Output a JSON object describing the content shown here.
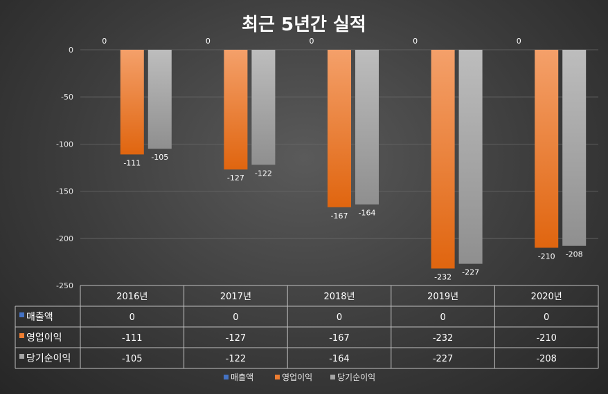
{
  "chart_data": {
    "type": "bar",
    "title": "최근 5년간 실적",
    "categories": [
      "2016년",
      "2017년",
      "2018년",
      "2019년",
      "2020년"
    ],
    "series": [
      {
        "name": "매출액",
        "values": [
          0,
          0,
          0,
          0,
          0
        ],
        "color": "#4472c4"
      },
      {
        "name": "영업이익",
        "values": [
          -111,
          -127,
          -167,
          -232,
          -210
        ],
        "color": "#ed7d31"
      },
      {
        "name": "당기순이익",
        "values": [
          -105,
          -122,
          -164,
          -227,
          -208
        ],
        "color": "#a5a5a5"
      }
    ],
    "ylim": [
      -250,
      0
    ],
    "yticks": [
      0,
      -50,
      -100,
      -150,
      -200,
      -250
    ],
    "grid": true,
    "legend": "bottom",
    "data_table": true
  }
}
